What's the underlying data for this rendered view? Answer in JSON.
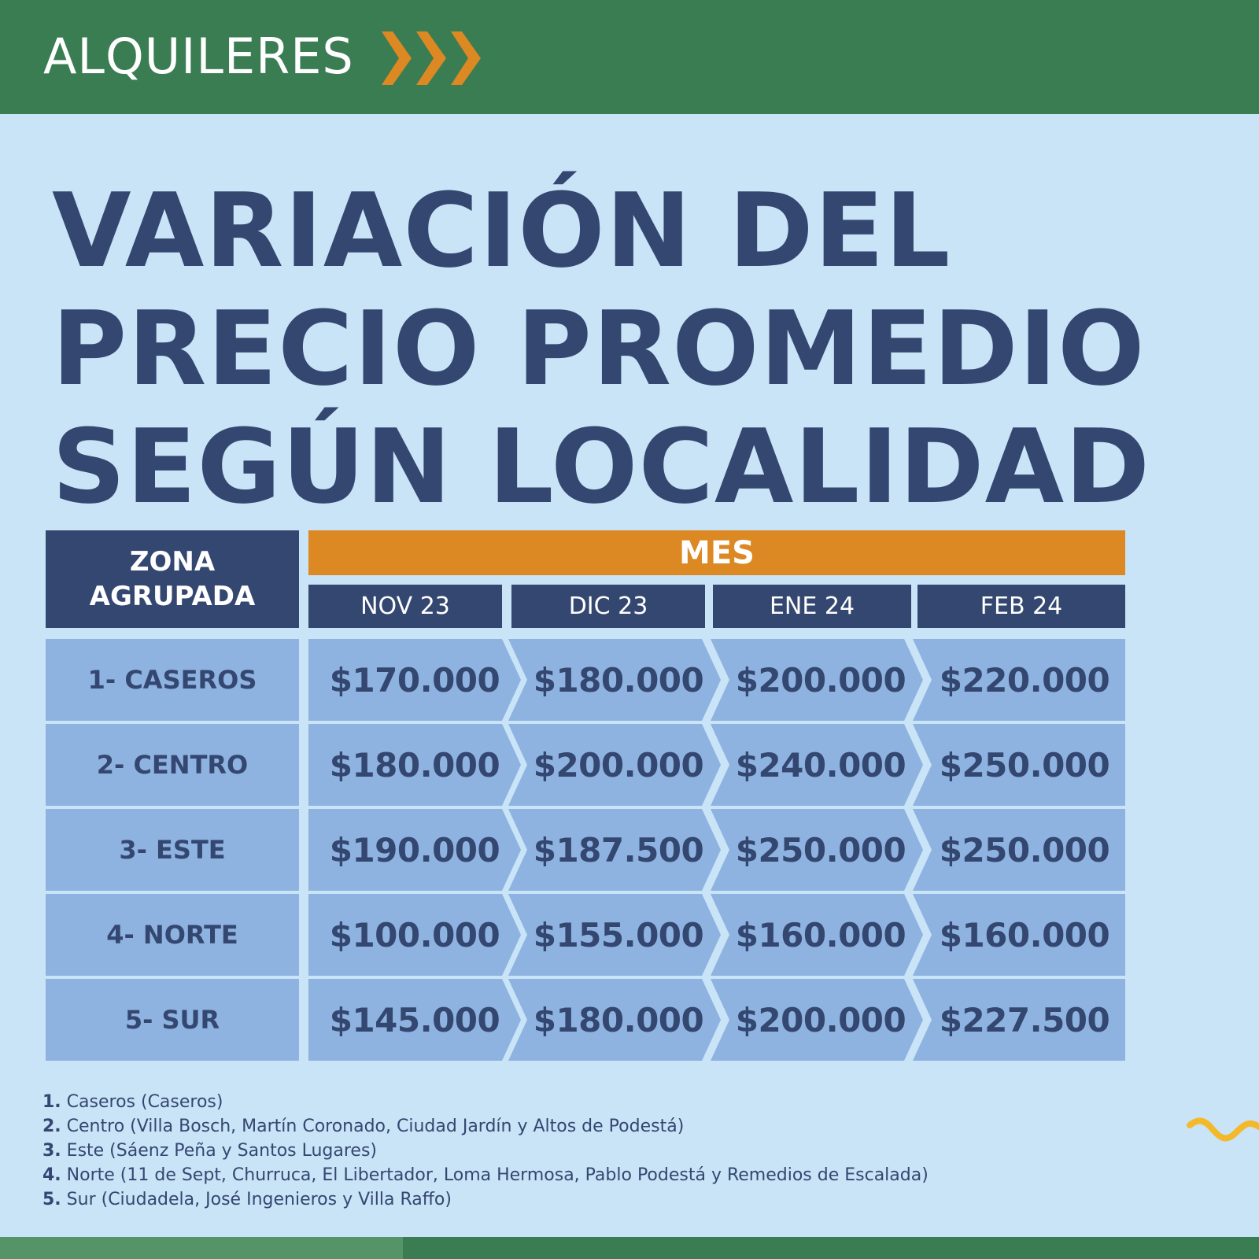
{
  "header": {
    "section_label": "ALQUILERES",
    "accent_color": "#dc8823",
    "bar_color": "#3b7d52"
  },
  "title": {
    "line1": "VARIACIÓN DEL",
    "line2": "PRECIO PROMEDIO",
    "line3": "SEGÚN LOCALIDAD"
  },
  "table": {
    "zone_header": "ZONA AGRUPADA",
    "month_group_header": "MES",
    "months": [
      "NOV 23",
      "DIC 23",
      "ENE 24",
      "FEB 24"
    ],
    "rows": [
      {
        "zone": "1- CASEROS",
        "prices": [
          "$170.000",
          "$180.000",
          "$200.000",
          "$220.000"
        ]
      },
      {
        "zone": "2- CENTRO",
        "prices": [
          "$180.000",
          "$200.000",
          "$240.000",
          "$250.000"
        ]
      },
      {
        "zone": "3- ESTE",
        "prices": [
          "$190.000",
          "$187.500",
          "$250.000",
          "$250.000"
        ]
      },
      {
        "zone": "4- NORTE",
        "prices": [
          "$100.000",
          "$155.000",
          "$160.000",
          "$160.000"
        ]
      },
      {
        "zone": "5- SUR",
        "prices": [
          "$145.000",
          "$180.000",
          "$200.000",
          "$227.500"
        ]
      }
    ]
  },
  "footnotes": [
    {
      "num": "1.",
      "text": " Caseros (Caseros)"
    },
    {
      "num": "2.",
      "text": " Centro (Villa Bosch, Martín Coronado, Ciudad Jardín y Altos de Podestá)"
    },
    {
      "num": "3.",
      "text": " Este (Sáenz Peña y Santos Lugares)"
    },
    {
      "num": "4.",
      "text": " Norte (11 de Sept, Churruca, El Libertador, Loma Hermosa, Pablo Podestá y Remedios de Escalada)"
    },
    {
      "num": "5.",
      "text": " Sur (Ciudadela, José Ingenieros y Villa Raffo)"
    }
  ],
  "colors": {
    "background": "#c9e3f7",
    "navy": "#344770",
    "cell_blue": "#8eb3e0",
    "squiggle": "#f4b92a"
  }
}
